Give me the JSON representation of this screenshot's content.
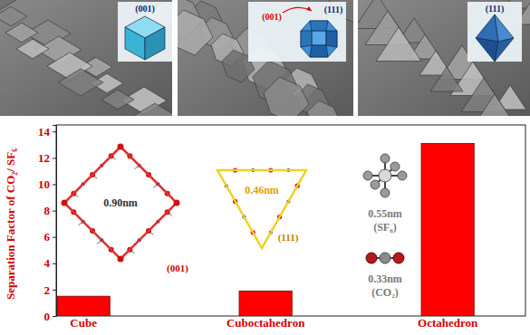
{
  "chart_data": {
    "type": "bar",
    "y_label": "Separation Factor of CO₂/ SF₆",
    "categories": [
      "Cube",
      "Cuboctahedron",
      "Octahedron"
    ],
    "values": [
      1.5,
      1.9,
      13.1
    ],
    "color": "#ff0000",
    "ylim": [
      0,
      14.5
    ],
    "yticks": [
      0,
      2,
      4,
      6,
      8,
      10,
      12,
      14
    ],
    "grid": false,
    "insets": [
      {
        "labels": [
          "(001)"
        ]
      },
      {
        "labels": [
          "(001)",
          "(111)"
        ]
      },
      {
        "labels": [
          "(111)"
        ]
      }
    ],
    "annotations": [
      "0.90nm",
      "(001)",
      "0.46nm",
      "(111)",
      "0.55nm",
      "(SF₆)",
      "0.33nm",
      "(CO₂)"
    ]
  }
}
